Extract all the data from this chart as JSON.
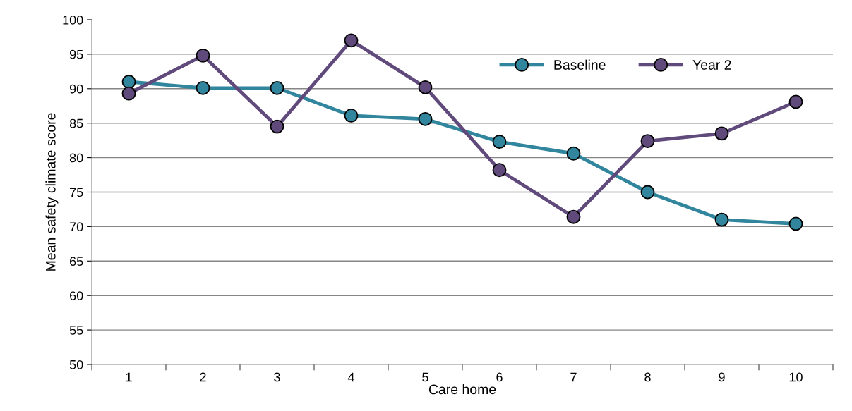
{
  "chart_data": {
    "type": "line",
    "xlabel": "Care home",
    "ylabel": "Mean safety climate score",
    "categories": [
      "1",
      "2",
      "3",
      "4",
      "5",
      "6",
      "7",
      "8",
      "9",
      "10"
    ],
    "series": [
      {
        "name": "Baseline",
        "color": "#31859c",
        "values": [
          91.0,
          90.1,
          90.1,
          86.1,
          85.6,
          82.3,
          80.6,
          75.0,
          71.0,
          70.4
        ]
      },
      {
        "name": "Year 2",
        "color": "#604a7b",
        "values": [
          89.3,
          94.8,
          84.5,
          97.0,
          90.2,
          78.2,
          71.4,
          82.4,
          83.5,
          88.1
        ]
      }
    ],
    "ylim": [
      50,
      100
    ],
    "yticks": [
      50,
      55,
      60,
      65,
      70,
      75,
      80,
      85,
      90,
      95,
      100
    ],
    "grid": "y",
    "legend": "top right",
    "marker": "circle",
    "line_style": "solid"
  }
}
